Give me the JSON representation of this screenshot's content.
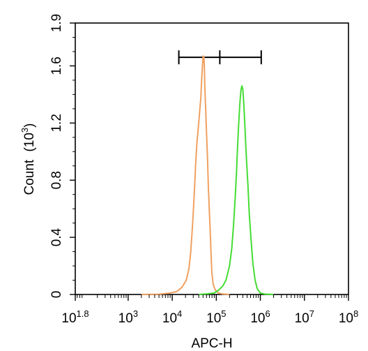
{
  "chart_data": {
    "type": "line",
    "xlabel": "APC-H",
    "ylabel": "Count",
    "ylabel_unit_base": "10",
    "ylabel_unit_exp": "3",
    "x_scale": "log10",
    "xlim": [
      1.8,
      8
    ],
    "ylim": [
      0,
      1.9
    ],
    "x_ticks": [
      {
        "base": "10",
        "exp": "1.8",
        "value": 1.8
      },
      {
        "base": "10",
        "exp": "3",
        "value": 3
      },
      {
        "base": "10",
        "exp": "4",
        "value": 4
      },
      {
        "base": "10",
        "exp": "5",
        "value": 5
      },
      {
        "base": "10",
        "exp": "6",
        "value": 6
      },
      {
        "base": "10",
        "exp": "7",
        "value": 7
      },
      {
        "base": "10",
        "exp": "8",
        "value": 8
      }
    ],
    "y_ticks": [
      {
        "label": "0",
        "value": 0
      },
      {
        "label": "0.4",
        "value": 0.4
      },
      {
        "label": "0.8",
        "value": 0.8
      },
      {
        "label": "1.2",
        "value": 1.2
      },
      {
        "label": "1.6",
        "value": 1.6
      },
      {
        "label": "1.9",
        "value": 1.9
      }
    ],
    "gate": {
      "x_start": 4.15,
      "x_mid": 5.08,
      "x_end": 6.02,
      "y": 1.66
    },
    "series": [
      {
        "color": "#f0a060",
        "points": [
          [
            3.3,
            0.0
          ],
          [
            3.7,
            0.002
          ],
          [
            3.95,
            0.01
          ],
          [
            4.1,
            0.02
          ],
          [
            4.22,
            0.05
          ],
          [
            4.32,
            0.1
          ],
          [
            4.38,
            0.18
          ],
          [
            4.42,
            0.3
          ],
          [
            4.46,
            0.48
          ],
          [
            4.5,
            0.7
          ],
          [
            4.53,
            0.9
          ],
          [
            4.56,
            1.06
          ],
          [
            4.59,
            1.16
          ],
          [
            4.62,
            1.27
          ],
          [
            4.65,
            1.38
          ],
          [
            4.67,
            1.52
          ],
          [
            4.69,
            1.62
          ],
          [
            4.7,
            1.67
          ],
          [
            4.72,
            1.66
          ],
          [
            4.73,
            1.58
          ],
          [
            4.74,
            1.45
          ],
          [
            4.76,
            1.3
          ],
          [
            4.78,
            1.12
          ],
          [
            4.8,
            0.96
          ],
          [
            4.82,
            0.76
          ],
          [
            4.84,
            0.6
          ],
          [
            4.86,
            0.46
          ],
          [
            4.88,
            0.3
          ],
          [
            4.9,
            0.15
          ],
          [
            4.93,
            0.07
          ],
          [
            4.98,
            0.03
          ],
          [
            5.05,
            0.01
          ],
          [
            5.15,
            0.003
          ],
          [
            5.3,
            0.0
          ]
        ]
      },
      {
        "color": "#44dd33",
        "points": [
          [
            4.6,
            0.0
          ],
          [
            4.8,
            0.005
          ],
          [
            4.95,
            0.01
          ],
          [
            5.05,
            0.03
          ],
          [
            5.15,
            0.06
          ],
          [
            5.22,
            0.1
          ],
          [
            5.3,
            0.2
          ],
          [
            5.35,
            0.32
          ],
          [
            5.39,
            0.48
          ],
          [
            5.43,
            0.68
          ],
          [
            5.46,
            0.86
          ],
          [
            5.48,
            1.02
          ],
          [
            5.5,
            1.14
          ],
          [
            5.52,
            1.26
          ],
          [
            5.54,
            1.36
          ],
          [
            5.56,
            1.43
          ],
          [
            5.58,
            1.46
          ],
          [
            5.6,
            1.44
          ],
          [
            5.62,
            1.36
          ],
          [
            5.64,
            1.24
          ],
          [
            5.66,
            1.1
          ],
          [
            5.69,
            0.92
          ],
          [
            5.72,
            0.76
          ],
          [
            5.75,
            0.56
          ],
          [
            5.79,
            0.38
          ],
          [
            5.83,
            0.22
          ],
          [
            5.88,
            0.1
          ],
          [
            5.93,
            0.04
          ],
          [
            6.0,
            0.01
          ],
          [
            6.1,
            0.003
          ],
          [
            6.3,
            0.0
          ]
        ]
      }
    ]
  }
}
